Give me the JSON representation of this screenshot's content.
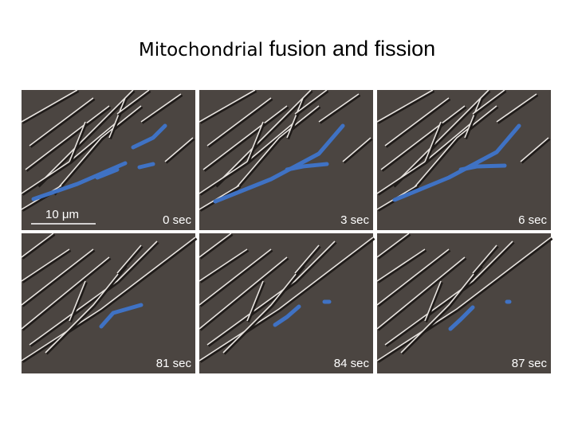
{
  "title": {
    "first": "Mitochondrial",
    "rest": "fusion and fission"
  },
  "scale_bar": "10 μm",
  "panels": [
    {
      "label": "0 sec"
    },
    {
      "label": "3 sec"
    },
    {
      "label": "6 sec"
    },
    {
      "label": "81 sec"
    },
    {
      "label": "84 sec"
    },
    {
      "label": "87 sec"
    }
  ]
}
